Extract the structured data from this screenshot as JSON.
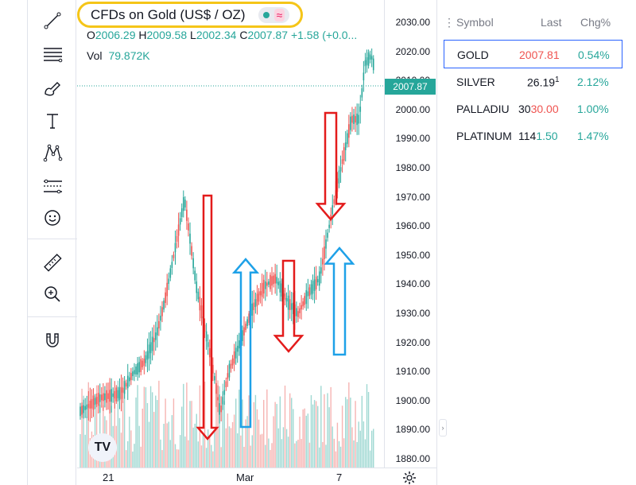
{
  "chart": {
    "symbol_title": "CFDs on Gold (US$ / OZ)",
    "ohlc": {
      "o_label": "O",
      "o_value": "2006.29",
      "h_label": "H",
      "h_value": "2009.58",
      "l_label": "L",
      "l_value": "2002.34",
      "c_label": "C",
      "c_value": "2007.87",
      "change": "+1.58 (+0.0..."
    },
    "volume": {
      "label": "Vol",
      "value": "79.872K"
    },
    "last_price_label": "2007.87",
    "logo_text": "TV",
    "price_ticks": [
      "2030.00",
      "2020.00",
      "2010.00",
      "2000.00",
      "1990.00",
      "1980.00",
      "1970.00",
      "1960.00",
      "1950.00",
      "1940.00",
      "1930.00",
      "1920.00",
      "1910.00",
      "1900.00",
      "1890.00",
      "1880.00"
    ],
    "time_ticks": [
      "21",
      "Mar",
      "7"
    ],
    "colors": {
      "up": "#26a69a",
      "down": "#ef5350",
      "red_arrow": "#e31b1b",
      "blue_arrow": "#1ea1e8",
      "highlight": "#f5c518"
    }
  },
  "toolbar": {
    "icons": [
      "trendline-icon",
      "fib-retracement-icon",
      "brush-icon",
      "text-icon",
      "pattern-icon",
      "forecast-icon",
      "emoji-icon",
      "ruler-icon",
      "zoom-in-icon",
      "magnet-icon"
    ]
  },
  "watchlist": {
    "headers": {
      "symbol": "Symbol",
      "last": "Last",
      "chg": "Chg%"
    },
    "rows": [
      {
        "symbol": "GOLD",
        "last": "2007.81",
        "chg": "0.54%",
        "last_color": "#ef5350",
        "chg_color": "#26a69a"
      },
      {
        "symbol": "SILVER",
        "last": "26.19",
        "last_small": "1",
        "chg": "2.12%",
        "last_color": "#131722",
        "chg_color": "#26a69a"
      },
      {
        "symbol": "PALLADIU",
        "last_black": "30",
        "last_red": "30.00",
        "chg": "1.00%",
        "chg_color": "#26a69a"
      },
      {
        "symbol": "PLATINUM",
        "last_black": "114",
        "last_green": "1.50",
        "chg": "1.47%",
        "chg_color": "#26a69a"
      }
    ]
  }
}
